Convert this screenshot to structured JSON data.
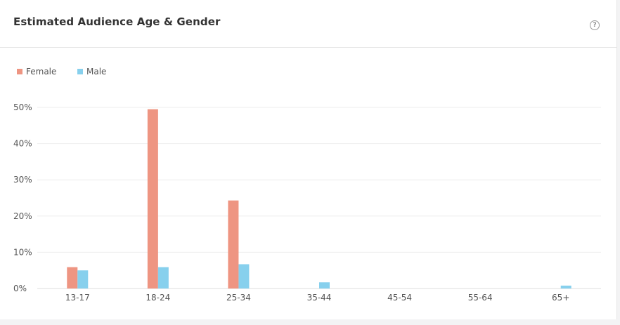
{
  "card": {
    "title": "Estimated Audience Age & Gender",
    "help_glyph": "?"
  },
  "colors": {
    "female": "#ee9582",
    "male": "#87d0ed",
    "grid": "#eeeeee",
    "baseline": "#dddddd"
  },
  "chart_data": {
    "type": "bar",
    "title": "",
    "xlabel": "",
    "ylabel": "",
    "categories": [
      "13-17",
      "18-24",
      "25-34",
      "35-44",
      "45-54",
      "55-64",
      "65+"
    ],
    "series": [
      {
        "name": "Female",
        "color": "#ee9582",
        "values": [
          5.9,
          49.5,
          24.3,
          0,
          0,
          0,
          0
        ]
      },
      {
        "name": "Male",
        "color": "#87d0ed",
        "values": [
          5.0,
          5.9,
          6.7,
          1.7,
          0,
          0,
          0.8
        ]
      }
    ],
    "ylim": [
      0,
      50
    ],
    "yticks": [
      0,
      10,
      20,
      30,
      40,
      50
    ],
    "ytick_labels": [
      "0%",
      "10%",
      "20%",
      "30%",
      "40%",
      "50%"
    ],
    "grid": true,
    "legend_position": "top-left"
  }
}
